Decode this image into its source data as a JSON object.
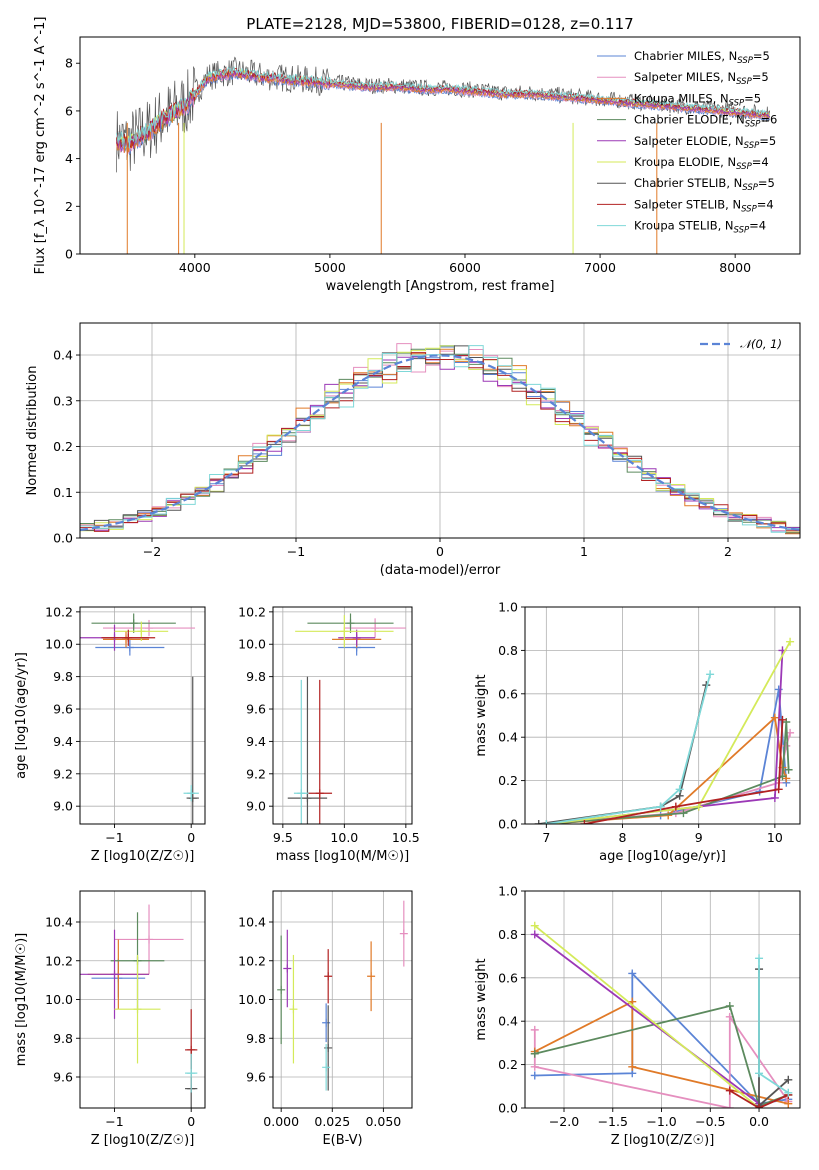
{
  "figure": {
    "title": "PLATE=2128, MJD=53800, FIBERID=0128, z=0.117"
  },
  "series": [
    {
      "name": "Chabrier MILES, N_SSP=5",
      "color": "#5b84d6"
    },
    {
      "name": "Salpeter MILES, N_SSP=5",
      "color": "#e58fbf"
    },
    {
      "name": "Kroupa MILES, N_SSP=5",
      "color": "#e07a28"
    },
    {
      "name": "Chabrier ELODIE, N_SSP=6",
      "color": "#5c8a5e"
    },
    {
      "name": "Salpeter ELODIE, N_SSP=5",
      "color": "#9b38b6"
    },
    {
      "name": "Kroupa ELODIE, N_SSP=4",
      "color": "#d4ea5a"
    },
    {
      "name": "Chabrier STELIB, N_SSP=5",
      "color": "#555555"
    },
    {
      "name": "Salpeter STELIB, N_SSP=4",
      "color": "#b22222"
    },
    {
      "name": "Kroupa STELIB, N_SSP=4",
      "color": "#7fd8d8"
    }
  ],
  "chart_data": [
    {
      "id": "spectrum",
      "type": "line",
      "xlabel": "wavelength [Angstrom, rest frame]",
      "ylabel": "Flux [f_λ 10^-17 erg cm^-2 s^-1 A^-1]",
      "xlim": [
        3150,
        8480
      ],
      "ylim": [
        0,
        9.1
      ],
      "xticks": [
        4000,
        5000,
        6000,
        7000,
        8000
      ],
      "yticks": [
        0,
        2,
        4,
        6,
        8
      ],
      "legend": "top-right",
      "data_profile": {
        "x": [
          3400,
          3500,
          3650,
          3800,
          3950,
          4100,
          4300,
          4500,
          4700,
          4900,
          5100,
          5300,
          5500,
          5700,
          5900,
          6100,
          6300,
          6500,
          6700,
          6900,
          7100,
          7300,
          7500,
          7700,
          7900,
          8100,
          8250
        ],
        "y": [
          4.8,
          4.6,
          5.1,
          5.8,
          6.3,
          7.4,
          7.6,
          7.4,
          7.3,
          7.2,
          7.1,
          7.0,
          7.0,
          6.9,
          6.9,
          6.8,
          6.7,
          6.7,
          6.6,
          6.5,
          6.4,
          6.3,
          6.2,
          6.1,
          6.0,
          5.9,
          5.8
        ]
      }
    },
    {
      "id": "residuals",
      "type": "line",
      "xlabel": "(data-model)/error",
      "ylabel": "Normed distribution",
      "xlim": [
        -2.5,
        2.5
      ],
      "ylim": [
        0,
        0.47
      ],
      "xticks": [
        -2,
        -1,
        0,
        1,
        2
      ],
      "yticks": [
        0.0,
        0.1,
        0.2,
        0.3,
        0.4
      ],
      "legend": "top-right",
      "gauss_label": "𝒩(0, 1)"
    },
    {
      "id": "age-vs-Z",
      "type": "scatter",
      "xlabel": "Z [log10(Z/Z☉)]",
      "ylabel": "age [log10(age/yr)]",
      "xlim": [
        -1.45,
        0.18
      ],
      "ylim": [
        8.89,
        10.23
      ],
      "xticks": [
        -1,
        0
      ],
      "yticks": [
        9.0,
        9.2,
        9.4,
        9.6,
        9.8,
        10.0,
        10.2
      ],
      "points": [
        {
          "s": 0,
          "x": -0.8,
          "y": 9.98,
          "xe": 0.45,
          "ye": 0.05
        },
        {
          "s": 1,
          "x": -0.55,
          "y": 10.1,
          "xe": 0.6,
          "ye": 0.05
        },
        {
          "s": 2,
          "x": -0.85,
          "y": 10.03,
          "xe": 0.3,
          "ye": 0.05
        },
        {
          "s": 3,
          "x": -0.75,
          "y": 10.13,
          "xe": 0.55,
          "ye": 0.06
        },
        {
          "s": 4,
          "x": -1.0,
          "y": 10.04,
          "xe": 0.45,
          "ye": 0.08
        },
        {
          "s": 5,
          "x": -0.65,
          "y": 10.08,
          "xe": 0.35,
          "ye": 0.06
        },
        {
          "s": 6,
          "x": 0.02,
          "y": 9.05,
          "xe": 0.08,
          "ye": 0.75
        },
        {
          "s": 7,
          "x": -0.82,
          "y": 10.04,
          "xe": 0.35,
          "ye": 0.05
        },
        {
          "s": 8,
          "x": 0.0,
          "y": 9.08,
          "xe": 0.1,
          "ye": 0.05
        }
      ]
    },
    {
      "id": "age-vs-mass",
      "type": "scatter",
      "xlabel": "mass [log10(M/M☉)]",
      "ylabel": "",
      "xlim": [
        9.42,
        10.55
      ],
      "ylim": [
        8.89,
        10.23
      ],
      "xticks": [
        9.5,
        10.0,
        10.5
      ],
      "yticks": [
        9.0,
        9.2,
        9.4,
        9.6,
        9.8,
        10.0,
        10.2
      ],
      "points": [
        {
          "s": 0,
          "x": 10.1,
          "y": 9.98,
          "xe": 0.15,
          "ye": 0.05
        },
        {
          "s": 1,
          "x": 10.25,
          "y": 10.1,
          "xe": 0.25,
          "ye": 0.06
        },
        {
          "s": 2,
          "x": 10.1,
          "y": 10.03,
          "xe": 0.2,
          "ye": 0.05
        },
        {
          "s": 3,
          "x": 10.05,
          "y": 10.13,
          "xe": 0.35,
          "ye": 0.06
        },
        {
          "s": 4,
          "x": 10.1,
          "y": 10.04,
          "xe": 0.15,
          "ye": 0.05
        },
        {
          "s": 5,
          "x": 10.0,
          "y": 10.08,
          "xe": 0.4,
          "ye": 0.1
        },
        {
          "s": 6,
          "x": 9.7,
          "y": 9.05,
          "xe": 0.16,
          "ye": 0.75
        },
        {
          "s": 7,
          "x": 9.8,
          "y": 9.08,
          "xe": 0.1,
          "ye": 0.7
        },
        {
          "s": 8,
          "x": 9.65,
          "y": 9.08,
          "xe": 0.06,
          "ye": 0.7
        }
      ]
    },
    {
      "id": "weight-vs-age",
      "type": "line",
      "xlabel": "age [log10(age/yr)]",
      "ylabel": "mass weight",
      "xlim": [
        6.72,
        10.33
      ],
      "ylim": [
        0,
        1.0
      ],
      "xticks": [
        7,
        8,
        9,
        10
      ],
      "yticks": [
        0.0,
        0.2,
        0.4,
        0.6,
        0.8,
        1.0
      ],
      "series": [
        {
          "s": 0,
          "x": [
            7.0,
            8.5,
            9.8,
            10.05,
            10.15
          ],
          "y": [
            0.0,
            0.04,
            0.15,
            0.62,
            0.19
          ]
        },
        {
          "s": 1,
          "x": [
            7.0,
            8.7,
            10.05,
            10.15,
            10.2
          ],
          "y": [
            0.0,
            0.05,
            0.19,
            0.36,
            0.42
          ]
        },
        {
          "s": 2,
          "x": [
            7.0,
            8.6,
            10.0,
            10.1,
            10.15
          ],
          "y": [
            0.0,
            0.04,
            0.49,
            0.26,
            0.21
          ]
        },
        {
          "s": 3,
          "x": [
            7.0,
            8.8,
            10.1,
            10.15,
            10.18
          ],
          "y": [
            0.0,
            0.05,
            0.22,
            0.47,
            0.25
          ]
        },
        {
          "s": 4,
          "x": [
            7.0,
            9.0,
            10.0,
            10.1
          ],
          "y": [
            0.0,
            0.08,
            0.12,
            0.8
          ]
        },
        {
          "s": 5,
          "x": [
            7.0,
            9.0,
            10.2
          ],
          "y": [
            0.0,
            0.08,
            0.84
          ]
        },
        {
          "s": 6,
          "x": [
            6.9,
            8.5,
            8.75,
            9.1
          ],
          "y": [
            0.0,
            0.08,
            0.13,
            0.64
          ]
        },
        {
          "s": 7,
          "x": [
            7.5,
            8.7,
            10.05,
            10.1
          ],
          "y": [
            0.0,
            0.08,
            0.16,
            0.48
          ]
        },
        {
          "s": 8,
          "x": [
            7.0,
            8.5,
            8.75,
            9.15
          ],
          "y": [
            0.0,
            0.08,
            0.16,
            0.69
          ]
        }
      ]
    },
    {
      "id": "mass-vs-Z",
      "type": "scatter",
      "xlabel": "Z [log10(Z/Z☉)]",
      "ylabel": "mass [log10(M/M☉)]",
      "xlim": [
        -1.45,
        0.18
      ],
      "ylim": [
        9.44,
        10.56
      ],
      "xticks": [
        -1,
        0
      ],
      "yticks": [
        9.6,
        9.8,
        10.0,
        10.2,
        10.4
      ],
      "points": [
        {
          "s": 0,
          "x": -0.95,
          "y": 10.11,
          "xe": 0.35,
          "ye": 0.1
        },
        {
          "s": 1,
          "x": -0.55,
          "y": 10.31,
          "xe": 0.45,
          "ye": 0.18
        },
        {
          "s": 2,
          "x": -0.95,
          "y": 10.13,
          "xe": 0.4,
          "ye": 0.18
        },
        {
          "s": 3,
          "x": -0.7,
          "y": 10.2,
          "xe": 0.35,
          "ye": 0.25
        },
        {
          "s": 4,
          "x": -1.0,
          "y": 10.13,
          "xe": 0.45,
          "ye": 0.23
        },
        {
          "s": 5,
          "x": -0.7,
          "y": 9.95,
          "xe": 0.3,
          "ye": 0.28
        },
        {
          "s": 6,
          "x": 0.0,
          "y": 9.54,
          "xe": 0.08,
          "ye": 0.2
        },
        {
          "s": 7,
          "x": 0.0,
          "y": 9.74,
          "xe": 0.08,
          "ye": 0.21
        },
        {
          "s": 8,
          "x": 0.0,
          "y": 9.62,
          "xe": 0.08,
          "ye": 0.1
        }
      ]
    },
    {
      "id": "mass-vs-EBV",
      "type": "scatter",
      "xlabel": "E(B-V)",
      "ylabel": "",
      "xlim": [
        -0.004,
        0.064
      ],
      "ylim": [
        9.44,
        10.56
      ],
      "xticks": [
        0.0,
        0.025,
        0.05
      ],
      "yticks": [
        9.6,
        9.8,
        10.0,
        10.2,
        10.4
      ],
      "points": [
        {
          "s": 0,
          "x": 0.022,
          "y": 9.88,
          "ye": 0.1
        },
        {
          "s": 1,
          "x": 0.06,
          "y": 10.34,
          "ye": 0.17
        },
        {
          "s": 2,
          "x": 0.044,
          "y": 10.12,
          "ye": 0.18
        },
        {
          "s": 3,
          "x": 0.0,
          "y": 10.05,
          "ye": 0.28
        },
        {
          "s": 4,
          "x": 0.003,
          "y": 10.16,
          "ye": 0.2
        },
        {
          "s": 5,
          "x": 0.006,
          "y": 9.95,
          "ye": 0.28
        },
        {
          "s": 6,
          "x": 0.023,
          "y": 9.75,
          "ye": 0.22
        },
        {
          "s": 7,
          "x": 0.023,
          "y": 10.12,
          "ye": 0.14
        },
        {
          "s": 8,
          "x": 0.022,
          "y": 9.65,
          "ye": 0.12
        }
      ]
    },
    {
      "id": "weight-vs-Z",
      "type": "line",
      "xlabel": "Z [log10(Z/Z☉)]",
      "ylabel": "mass weight",
      "xlim": [
        -2.4,
        0.42
      ],
      "ylim": [
        0,
        1.0
      ],
      "xticks": [
        -2.0,
        -1.5,
        -1.0,
        -0.5,
        0.0
      ],
      "yticks": [
        0.0,
        0.2,
        0.4,
        0.6,
        0.8,
        1.0
      ],
      "series": [
        {
          "s": 0,
          "x": [
            -2.3,
            -1.3,
            -1.3,
            0.0,
            0.3
          ],
          "y": [
            0.15,
            0.16,
            0.62,
            0.02,
            0.04
          ]
        },
        {
          "s": 1,
          "x": [
            -2.3,
            -2.3,
            -0.3,
            -0.3,
            0.3
          ],
          "y": [
            0.36,
            0.19,
            0.0,
            0.42,
            0.03
          ]
        },
        {
          "s": 2,
          "x": [
            -2.3,
            -1.3,
            -1.3,
            0.3
          ],
          "y": [
            0.26,
            0.49,
            0.19,
            0.02
          ]
        },
        {
          "s": 3,
          "x": [
            -2.3,
            -0.3,
            0.0,
            0.3
          ],
          "y": [
            0.25,
            0.47,
            0.01,
            0.06
          ]
        },
        {
          "s": 4,
          "x": [
            -2.3,
            0.0
          ],
          "y": [
            0.8,
            0.02
          ]
        },
        {
          "s": 5,
          "x": [
            -2.3,
            0.0
          ],
          "y": [
            0.84,
            0.0
          ]
        },
        {
          "s": 6,
          "x": [
            0.0,
            0.0,
            0.3
          ],
          "y": [
            0.64,
            0.01,
            0.13
          ]
        },
        {
          "s": 7,
          "x": [
            -0.3,
            0.0,
            0.3
          ],
          "y": [
            0.08,
            0.0,
            0.06
          ]
        },
        {
          "s": 8,
          "x": [
            0.0,
            0.0,
            0.3
          ],
          "y": [
            0.69,
            0.16,
            0.07
          ]
        }
      ]
    }
  ]
}
